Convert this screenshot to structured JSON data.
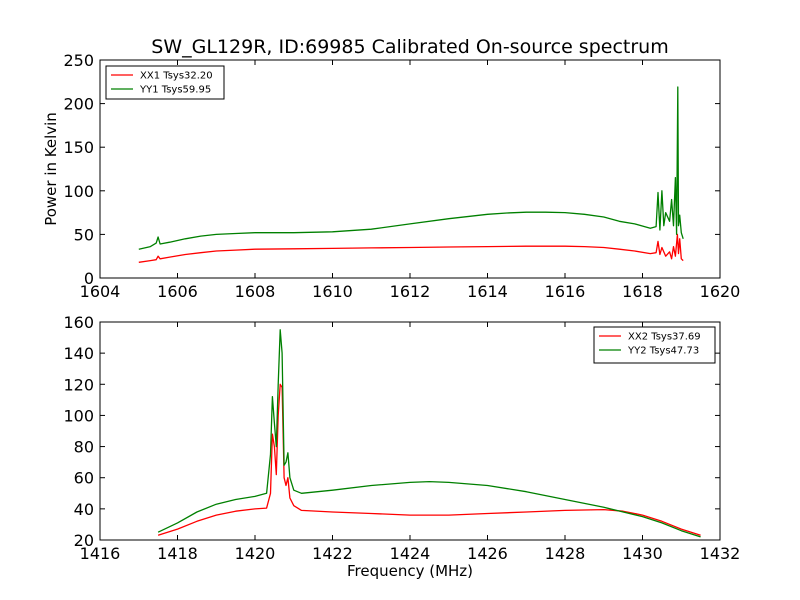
{
  "figure_title": "SW_GL129R, ID:69985 Calibrated On-source spectrum",
  "colors": {
    "xx": "#ff0000",
    "yy": "#008000",
    "axes": "#000000",
    "background": "#ffffff"
  },
  "chart_data": [
    {
      "type": "line",
      "title": "SW_GL129R, ID:69985 Calibrated On-source spectrum",
      "xlabel": "",
      "ylabel": "Power in Kelvin",
      "xlim": [
        1604,
        1620
      ],
      "ylim": [
        0,
        250
      ],
      "xticks": [
        1604,
        1606,
        1608,
        1610,
        1612,
        1614,
        1616,
        1618,
        1620
      ],
      "yticks": [
        0,
        50,
        100,
        150,
        200,
        250
      ],
      "legend_position": "top-left",
      "grid": false,
      "series": [
        {
          "name": "XX1 Tsys32.20",
          "color": "#ff0000",
          "x": [
            1605.0,
            1605.3,
            1605.45,
            1605.5,
            1605.55,
            1605.8,
            1606.2,
            1606.6,
            1607.0,
            1607.5,
            1608.0,
            1609.0,
            1610.0,
            1611.0,
            1612.0,
            1613.0,
            1614.0,
            1615.0,
            1616.0,
            1616.5,
            1617.0,
            1617.4,
            1617.8,
            1618.2,
            1618.35,
            1618.4,
            1618.45,
            1618.5,
            1618.6,
            1618.7,
            1618.75,
            1618.8,
            1618.85,
            1618.9,
            1618.93,
            1618.96,
            1619.0,
            1619.05
          ],
          "y": [
            18,
            20,
            21,
            25,
            22,
            24,
            27,
            29,
            31,
            32,
            33,
            33.5,
            34,
            34.5,
            35,
            35.5,
            36,
            36.5,
            36.5,
            36,
            35,
            33,
            31,
            28,
            29,
            42,
            27,
            35,
            25,
            30,
            22,
            36,
            25,
            50,
            28,
            45,
            22,
            20
          ]
        },
        {
          "name": "YY1 Tsys59.95",
          "color": "#008000",
          "x": [
            1605.0,
            1605.3,
            1605.45,
            1605.5,
            1605.55,
            1605.8,
            1606.2,
            1606.6,
            1607.0,
            1607.5,
            1608.0,
            1609.0,
            1610.0,
            1611.0,
            1612.0,
            1613.0,
            1614.0,
            1614.5,
            1615.0,
            1615.5,
            1616.0,
            1616.5,
            1617.0,
            1617.4,
            1617.8,
            1618.2,
            1618.35,
            1618.4,
            1618.45,
            1618.5,
            1618.55,
            1618.6,
            1618.7,
            1618.75,
            1618.8,
            1618.85,
            1618.88,
            1618.91,
            1618.93,
            1618.96,
            1619.0,
            1619.05
          ],
          "y": [
            33,
            36,
            40,
            47,
            39,
            41,
            45,
            48,
            50,
            51,
            52,
            52,
            53,
            56,
            62,
            68,
            73,
            74.5,
            75.5,
            75.5,
            75,
            73,
            70,
            65,
            62,
            57,
            59,
            98,
            55,
            100,
            60,
            75,
            65,
            90,
            60,
            115,
            50,
            219,
            60,
            72,
            52,
            45
          ]
        }
      ]
    },
    {
      "type": "line",
      "title": "",
      "xlabel": "Frequency (MHz)",
      "ylabel": "",
      "xlim": [
        1416,
        1432
      ],
      "ylim": [
        20,
        160
      ],
      "xticks": [
        1416,
        1418,
        1420,
        1422,
        1424,
        1426,
        1428,
        1430,
        1432
      ],
      "yticks": [
        20,
        40,
        60,
        80,
        100,
        120,
        140,
        160
      ],
      "legend_position": "top-right",
      "grid": false,
      "series": [
        {
          "name": "XX2 Tsys37.69",
          "color": "#ff0000",
          "x": [
            1417.5,
            1418.0,
            1418.5,
            1419.0,
            1419.5,
            1420.0,
            1420.3,
            1420.4,
            1420.45,
            1420.5,
            1420.55,
            1420.6,
            1420.65,
            1420.7,
            1420.75,
            1420.8,
            1420.85,
            1420.9,
            1421.0,
            1421.2,
            1422.0,
            1423.0,
            1424.0,
            1425.0,
            1426.0,
            1427.0,
            1428.0,
            1429.0,
            1429.5,
            1430.0,
            1430.5,
            1431.0,
            1431.5
          ],
          "y": [
            23,
            27,
            32,
            36,
            38.5,
            40,
            40.5,
            50,
            88,
            80,
            62,
            100,
            120,
            118,
            60,
            55,
            60,
            47,
            42,
            39,
            38,
            37,
            36,
            36,
            37,
            38,
            39,
            39.5,
            38.5,
            36,
            32,
            27,
            23
          ]
        },
        {
          "name": "YY2 Tsys47.73",
          "color": "#008000",
          "x": [
            1417.5,
            1418.0,
            1418.5,
            1419.0,
            1419.5,
            1420.0,
            1420.3,
            1420.4,
            1420.45,
            1420.5,
            1420.55,
            1420.6,
            1420.65,
            1420.7,
            1420.75,
            1420.8,
            1420.85,
            1420.9,
            1421.0,
            1421.2,
            1422.0,
            1423.0,
            1424.0,
            1424.5,
            1425.0,
            1426.0,
            1427.0,
            1428.0,
            1429.0,
            1430.0,
            1430.5,
            1431.0,
            1431.5
          ],
          "y": [
            25,
            31,
            38,
            43,
            46,
            48,
            50,
            75,
            112,
            95,
            80,
            120,
            155,
            140,
            68,
            70,
            76,
            60,
            52,
            50,
            52,
            55,
            57,
            57.5,
            57,
            55,
            51,
            46,
            41,
            35,
            31,
            26,
            22
          ]
        }
      ]
    }
  ]
}
